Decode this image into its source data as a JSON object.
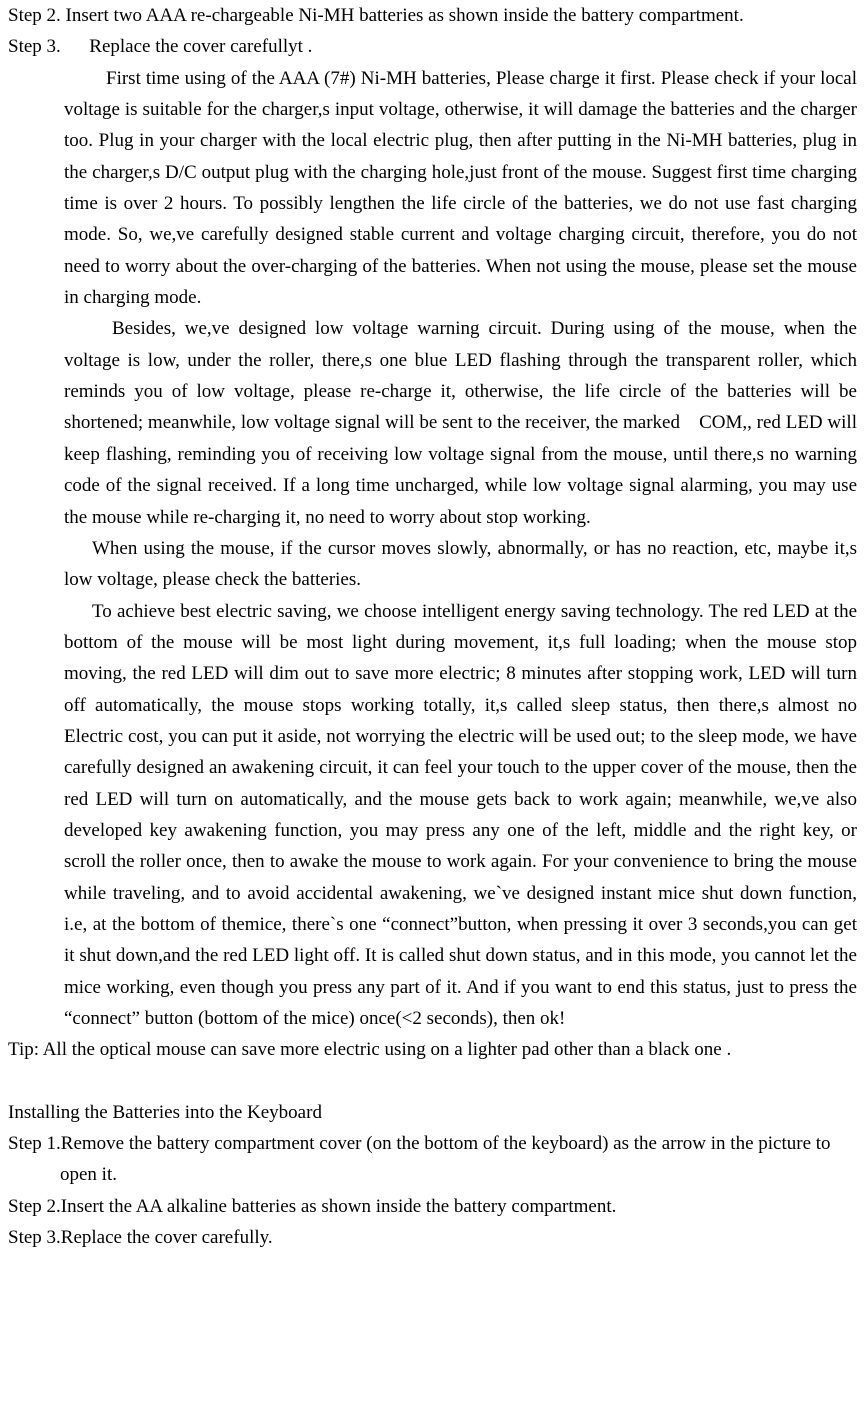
{
  "mouse": {
    "step2": "Step 2. Insert two AAA re-chargeable Ni-MH batteries as shown inside the battery compartment.",
    "step3_label": "Step 3.",
    "step3_text": "Replace the cover carefullyt .",
    "para_first_time": "First time using of the AAA (7#) Ni-MH batteries, Please charge it first. Please check if your local voltage is suitable for the charger,s input voltage, otherwise, it will damage the batteries and the charger too. Plug in your charger with the local electric plug, then after putting in the Ni-MH batteries, plug in the charger,s D/C output plug with the charging hole,just front of the mouse. Suggest first time charging time is over 2 hours. To possibly lengthen the life circle of the batteries, we do not use fast charging mode. So, we,ve carefully designed stable current and voltage charging circuit, therefore, you do not need to worry about the over-charging of the batteries. When not using the mouse, please set the mouse in charging mode.",
    "para_besides": "Besides, we,ve designed low voltage warning circuit. During using of the mouse, when the voltage is low, under the roller, there,s one blue LED flashing through the transparent roller, which reminds you of low voltage, please re-charge it, otherwise, the life circle of the batteries will be shortened; meanwhile, low voltage signal will be sent to the receiver, the marked   COM,, red LED will keep flashing, reminding you of receiving low voltage signal from the mouse, until there,s no warning code of the signal received. If a long time uncharged, while low voltage signal alarming, you may use the mouse while re-charging it, no need to worry about stop working.",
    "para_when_using": "When using the mouse, if the cursor moves slowly, abnormally, or has no reaction, etc, maybe it,s low voltage, please check the batteries.",
    "para_achieve": "To achieve best electric saving, we choose intelligent energy saving technology. The red LED at the bottom of the mouse will be most light during movement, it,s full loading; when the mouse stop moving, the red LED will dim out to save more electric; 8 minutes after stopping work, LED will turn off automatically, the mouse stops working totally, it,s called sleep status, then there,s almost no Electric cost, you can put it aside, not worrying the electric will be used out; to the sleep mode, we have carefully designed an awakening circuit, it can feel your touch to the upper cover of the mouse, then the red LED will turn on automatically, and the mouse gets back to work again; meanwhile, we,ve also developed key awakening function, you may press any one of the left, middle and the right key, or scroll the roller once, then to awake the mouse to work again. For your convenience to bring the mouse while traveling, and to avoid  accidental awakening, we`ve designed instant mice shut down function, i.e, at the bottom of themice, there`s one “connect”button, when pressing it over 3 seconds,you can get it shut down,and the red LED light off. It is called shut down status, and in this mode, you cannot let the mice working, even though you press any part of it. And if you want to end this status, just to press the “connect” button (bottom of the mice) once(<2 seconds), then ok!"
  },
  "tip": "Tip: All the optical mouse can save more electric using on a lighter pad other than a black one .",
  "keyboard": {
    "title": "Installing the Batteries into the Keyboard",
    "step1": "Step 1.Remove the battery compartment cover (on the bottom of the keyboard) as the arrow in the picture to open it.",
    "step2": "Step 2.Insert the AA alkaline batteries as shown inside the battery compartment.",
    "step3": "Step 3.Replace the cover carefully."
  }
}
